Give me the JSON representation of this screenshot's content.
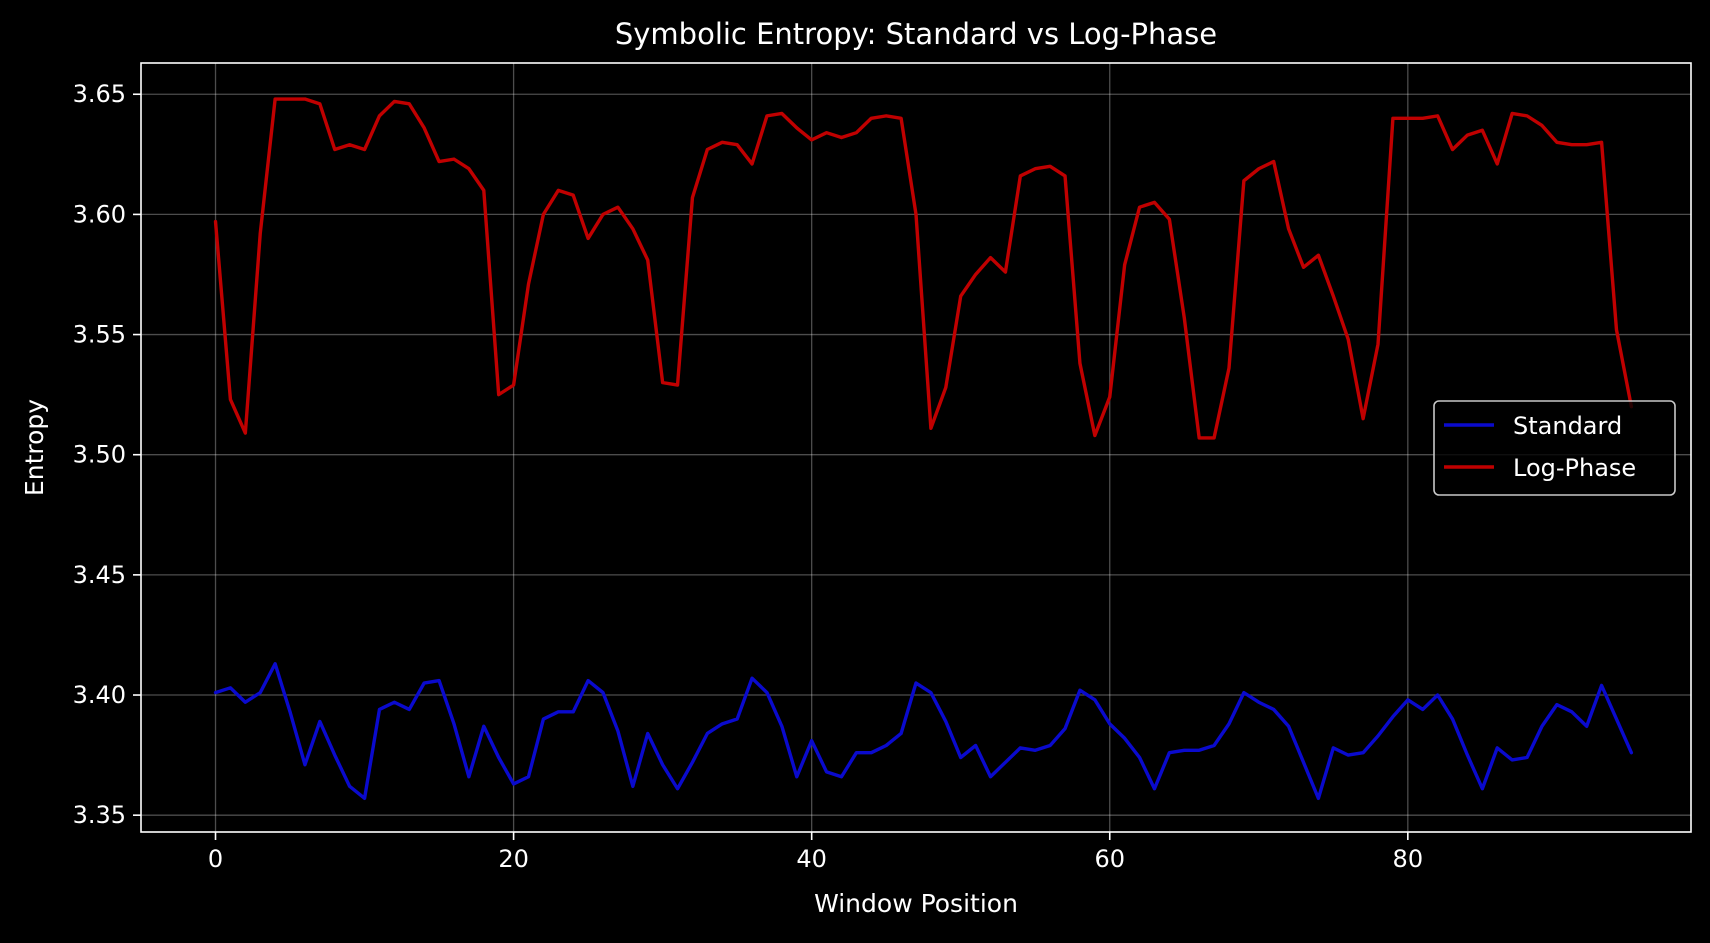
{
  "chart_data": {
    "type": "line",
    "title": "Symbolic Entropy: Standard vs Log-Phase",
    "xlabel": "Window Position",
    "ylabel": "Entropy",
    "xlim": [
      -5,
      99
    ],
    "ylim": [
      3.343,
      3.663
    ],
    "xticks": [
      0,
      20,
      40,
      60,
      80
    ],
    "yticks": [
      3.35,
      3.4,
      3.45,
      3.5,
      3.55,
      3.6,
      3.65
    ],
    "grid": true,
    "legend_position": "center-right",
    "background": "#000000",
    "series": [
      {
        "name": "Standard",
        "color": "#0a0acd",
        "values": [
          3.401,
          3.403,
          3.397,
          3.401,
          3.413,
          3.393,
          3.371,
          3.389,
          3.375,
          3.362,
          3.357,
          3.394,
          3.397,
          3.394,
          3.405,
          3.406,
          3.388,
          3.366,
          3.387,
          3.374,
          3.363,
          3.366,
          3.39,
          3.393,
          3.393,
          3.406,
          3.401,
          3.385,
          3.362,
          3.384,
          3.371,
          3.361,
          3.372,
          3.384,
          3.388,
          3.39,
          3.407,
          3.401,
          3.387,
          3.366,
          3.381,
          3.368,
          3.366,
          3.376,
          3.376,
          3.379,
          3.384,
          3.405,
          3.401,
          3.389,
          3.374,
          3.379,
          3.366,
          3.372,
          3.378,
          3.377,
          3.379,
          3.386,
          3.402,
          3.398,
          3.388,
          3.382,
          3.374,
          3.361,
          3.376,
          3.377,
          3.377,
          3.379,
          3.388,
          3.401,
          3.397,
          3.394,
          3.387,
          3.372,
          3.357,
          3.378,
          3.375,
          3.376,
          3.383,
          3.391,
          3.398,
          3.394,
          3.4,
          3.39,
          3.375,
          3.361,
          3.378,
          3.373,
          3.374,
          3.387,
          3.396,
          3.393,
          3.387,
          3.404,
          3.39,
          3.376
        ]
      },
      {
        "name": "Log-Phase",
        "color": "#c00000",
        "values": [
          3.597,
          3.523,
          3.509,
          3.592,
          3.648,
          3.648,
          3.648,
          3.646,
          3.627,
          3.629,
          3.627,
          3.641,
          3.647,
          3.646,
          3.636,
          3.622,
          3.623,
          3.619,
          3.61,
          3.525,
          3.529,
          3.571,
          3.6,
          3.61,
          3.608,
          3.59,
          3.6,
          3.603,
          3.594,
          3.581,
          3.53,
          3.529,
          3.607,
          3.627,
          3.63,
          3.629,
          3.621,
          3.641,
          3.642,
          3.636,
          3.631,
          3.634,
          3.632,
          3.634,
          3.64,
          3.641,
          3.64,
          3.6,
          3.511,
          3.528,
          3.566,
          3.575,
          3.582,
          3.576,
          3.616,
          3.619,
          3.62,
          3.616,
          3.538,
          3.508,
          3.524,
          3.579,
          3.603,
          3.605,
          3.598,
          3.557,
          3.507,
          3.507,
          3.536,
          3.614,
          3.619,
          3.622,
          3.594,
          3.578,
          3.583,
          3.566,
          3.548,
          3.515,
          3.546,
          3.64,
          3.64,
          3.64,
          3.641,
          3.627,
          3.633,
          3.635,
          3.621,
          3.642,
          3.641,
          3.637,
          3.63,
          3.629,
          3.629,
          3.63,
          3.552,
          3.52
        ]
      }
    ]
  }
}
